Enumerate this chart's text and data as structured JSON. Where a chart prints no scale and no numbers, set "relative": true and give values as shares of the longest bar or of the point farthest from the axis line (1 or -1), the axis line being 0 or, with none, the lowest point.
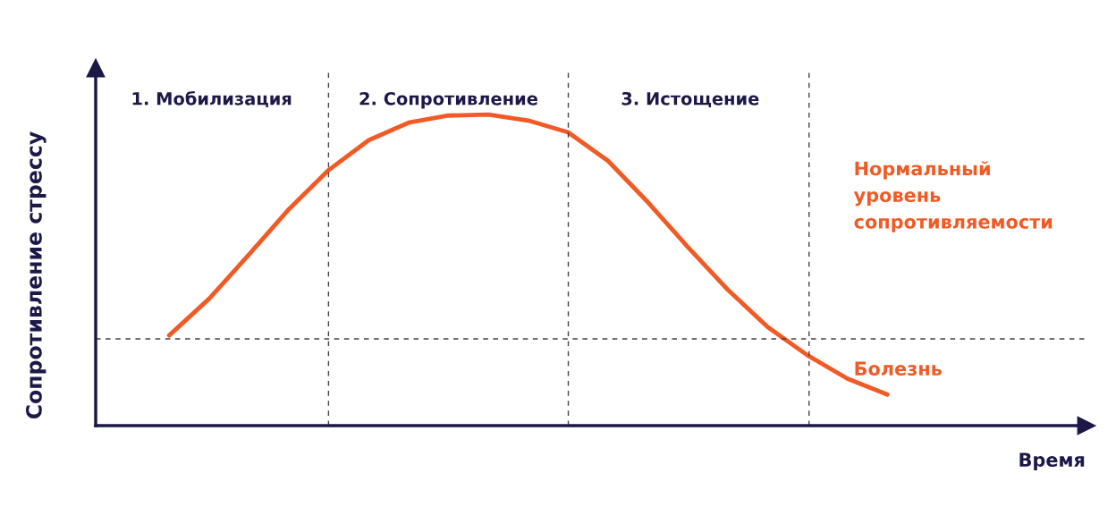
{
  "chart_data": {
    "type": "line",
    "relative": true,
    "grid": "x",
    "ylabel": "Сопротивление стрессу",
    "categories": [
      null,
      null,
      null,
      null,
      null,
      null,
      null,
      null,
      null,
      null,
      null,
      null,
      null,
      null,
      null,
      null,
      null,
      null,
      null
    ],
    "series": [
      {
        "color": "#f15a24",
        "values": [
          0.29,
          0.408,
          0.55,
          0.696,
          0.822,
          0.918,
          0.974,
          0.997,
          1,
          0.981,
          0.943,
          0.851,
          0.718,
          0.574,
          0.437,
          0.317,
          0.226,
          0.151,
          0.1
        ]
      }
    ],
    "ref_lines": [
      {
        "axis": "y",
        "value": 0.279,
        "line_style": "dashed",
        "color": "#444444"
      }
    ],
    "annotations": [
      "1. Мобилизация",
      "2. Сопротивление",
      "3. Истощение",
      "Нормальный\nуровень\nсопротивляемости",
      "Болезнь",
      "Время"
    ]
  }
}
